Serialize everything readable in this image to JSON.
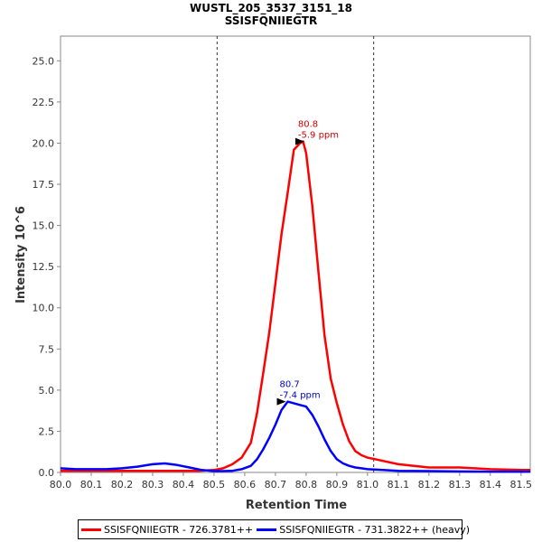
{
  "chart_data": {
    "type": "line",
    "title": "WUSTL_205_3537_3151_18",
    "subtitle": "SSISFQNIIEGTR",
    "xlabel": "Retention Time",
    "ylabel": "Intensity 10^6",
    "xlim": [
      80.0,
      81.53
    ],
    "ylim": [
      0,
      26.5
    ],
    "xticks": [
      "80.0",
      "80.1",
      "80.2",
      "80.3",
      "80.4",
      "80.5",
      "80.6",
      "80.7",
      "80.8",
      "80.9",
      "81.0",
      "81.1",
      "81.2",
      "81.3",
      "81.4",
      "81.5"
    ],
    "yticks": [
      "0.0",
      "2.5",
      "5.0",
      "7.5",
      "10.0",
      "12.5",
      "15.0",
      "17.5",
      "20.0",
      "22.5",
      "25.0"
    ],
    "boundaries": [
      80.51,
      81.02
    ],
    "series": [
      {
        "name": "SSISFQNIIEGTR - 726.3781++",
        "color": "#ff0000",
        "x": [
          80.0,
          80.1,
          80.2,
          80.3,
          80.4,
          80.45,
          80.5,
          80.53,
          80.56,
          80.59,
          80.62,
          80.64,
          80.66,
          80.68,
          80.7,
          80.72,
          80.74,
          80.76,
          80.78,
          80.79,
          80.8,
          80.82,
          80.84,
          80.86,
          80.88,
          80.9,
          80.92,
          80.94,
          80.96,
          80.98,
          81.0,
          81.05,
          81.1,
          81.2,
          81.3,
          81.4,
          81.5,
          81.53
        ],
        "y": [
          0.1,
          0.1,
          0.1,
          0.1,
          0.1,
          0.1,
          0.15,
          0.25,
          0.5,
          0.9,
          1.8,
          3.6,
          6.0,
          8.5,
          11.5,
          14.5,
          17.0,
          19.6,
          20.0,
          20.1,
          19.4,
          16.2,
          12.2,
          8.3,
          5.7,
          4.2,
          2.9,
          1.9,
          1.3,
          1.05,
          0.9,
          0.7,
          0.5,
          0.3,
          0.3,
          0.2,
          0.15,
          0.15
        ]
      },
      {
        "name": "SSISFQNIIEGTR - 731.3822++ (heavy)",
        "color": "#0000ff",
        "x": [
          80.0,
          80.05,
          80.1,
          80.15,
          80.2,
          80.25,
          80.3,
          80.34,
          80.38,
          80.42,
          80.46,
          80.5,
          80.53,
          80.56,
          80.59,
          80.62,
          80.64,
          80.66,
          80.68,
          80.7,
          80.72,
          80.74,
          80.76,
          80.78,
          80.8,
          80.82,
          80.84,
          80.86,
          80.88,
          80.9,
          80.92,
          80.94,
          80.96,
          80.98,
          81.0,
          81.05,
          81.1,
          81.2,
          81.3,
          81.4,
          81.5,
          81.53
        ],
        "y": [
          0.25,
          0.2,
          0.2,
          0.2,
          0.25,
          0.35,
          0.5,
          0.55,
          0.45,
          0.3,
          0.15,
          0.08,
          0.08,
          0.1,
          0.2,
          0.4,
          0.8,
          1.4,
          2.1,
          2.9,
          3.8,
          4.3,
          4.2,
          4.1,
          4.0,
          3.5,
          2.8,
          2.0,
          1.3,
          0.8,
          0.55,
          0.4,
          0.3,
          0.25,
          0.2,
          0.15,
          0.1,
          0.08,
          0.06,
          0.05,
          0.05,
          0.05
        ]
      }
    ],
    "annotations": [
      {
        "series": 0,
        "x": 80.8,
        "y": 20.1,
        "label": "80.8",
        "sublabel": "-5.9 ppm",
        "color": "#cc0000"
      },
      {
        "series": 1,
        "x": 80.74,
        "y": 4.3,
        "label": "80.7",
        "sublabel": "-7.4 ppm",
        "color": "#0000cc"
      }
    ],
    "legend_position": "bottom"
  },
  "legend": {
    "item0": "SSISFQNIIEGTR - 726.3781++",
    "item1": "SSISFQNIIEGTR - 731.3822++ (heavy)"
  }
}
